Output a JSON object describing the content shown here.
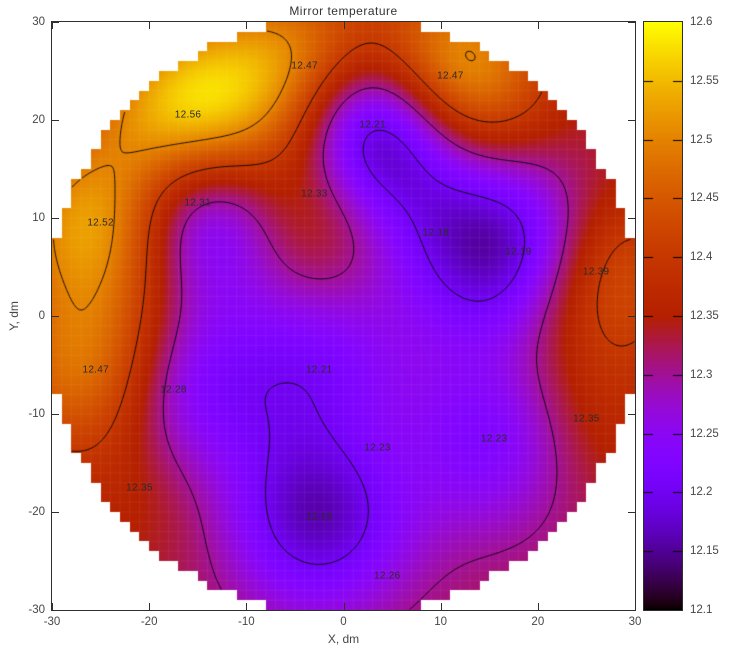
{
  "title": "Mirror temperature",
  "colors": {
    "background": "#ffffff",
    "frame": "#2f2f2f",
    "tick_text": "#474747",
    "title_text": "#333333",
    "contour_line": "#000000",
    "sensor_text": "#2b2b2b"
  },
  "chart_data": {
    "type": "heatmap",
    "subtype": "interpolated temperature map with contour lines (pm3d style)",
    "title": "Mirror temperature",
    "xlabel": "X, dm",
    "ylabel": "Y, dm",
    "xlim": [
      -30,
      30
    ],
    "ylim": [
      -30,
      30
    ],
    "x_ticks": [
      -30,
      -20,
      -10,
      0,
      10,
      20,
      30
    ],
    "x_tick_labels": [
      "-30",
      "-20",
      "-10",
      "0",
      "10",
      "20",
      "30"
    ],
    "y_ticks": [
      -30,
      -20,
      -10,
      0,
      10,
      20,
      30
    ],
    "y_tick_labels": [
      "-30",
      "-20",
      "-10",
      "0",
      "10",
      "20",
      "30"
    ],
    "domain": {
      "shape": "circle",
      "radius_dm": 30,
      "cell_dm": 1
    },
    "grid": "faint 1-dm cell mesh inside the circle",
    "colorbar": {
      "min": 12.1,
      "max": 12.6,
      "tick_step": 0.05,
      "tick_labels": [
        "12.6",
        "12.55",
        "12.5",
        "12.45",
        "12.4",
        "12.35",
        "12.3",
        "12.25",
        "12.2",
        "12.15",
        "12.1"
      ],
      "palette_name": "gnuplot default pm3d (rgbformulae 7,5,15): black-violet-magenta-red-orange-yellow",
      "palette_stops": [
        {
          "value": 12.1,
          "hex": "#000000"
        },
        {
          "value": 12.2,
          "hex": "#7202F2"
        },
        {
          "value": 12.3,
          "hex": "#A11096"
        },
        {
          "value": 12.4,
          "hex": "#C53700"
        },
        {
          "value": 12.5,
          "hex": "#E48300"
        },
        {
          "value": 12.6,
          "hex": "#FFFF00"
        }
      ],
      "legend_position": "right"
    },
    "contour_levels": [
      12.2,
      12.3,
      12.4,
      12.5
    ],
    "sensors": [
      {
        "x": -4,
        "y": 25.5,
        "t": 12.47
      },
      {
        "x": 11,
        "y": 24.5,
        "t": 12.47
      },
      {
        "x": -16,
        "y": 20.5,
        "t": 12.56
      },
      {
        "x": 3,
        "y": 19.5,
        "t": 12.21
      },
      {
        "x": -15,
        "y": 11.5,
        "t": 12.31
      },
      {
        "x": -3,
        "y": 12.5,
        "t": 12.33
      },
      {
        "x": -25,
        "y": 9.5,
        "t": 12.52
      },
      {
        "x": 9.5,
        "y": 8.5,
        "t": 12.18
      },
      {
        "x": 18,
        "y": 6.5,
        "t": 12.19
      },
      {
        "x": 26,
        "y": 4.5,
        "t": 12.39
      },
      {
        "x": -25.5,
        "y": -5.5,
        "t": 12.47
      },
      {
        "x": -17.5,
        "y": -7.5,
        "t": 12.28
      },
      {
        "x": -2.5,
        "y": -5.5,
        "t": 12.21
      },
      {
        "x": -21,
        "y": -17.5,
        "t": 12.35
      },
      {
        "x": 3.5,
        "y": -13.5,
        "t": 12.23
      },
      {
        "x": 15.5,
        "y": -12.5,
        "t": 12.23
      },
      {
        "x": 25,
        "y": -10.5,
        "t": 12.35
      },
      {
        "x": -2.5,
        "y": -20.5,
        "t": 12.16
      },
      {
        "x": 4.5,
        "y": -26.5,
        "t": 12.26
      }
    ]
  }
}
